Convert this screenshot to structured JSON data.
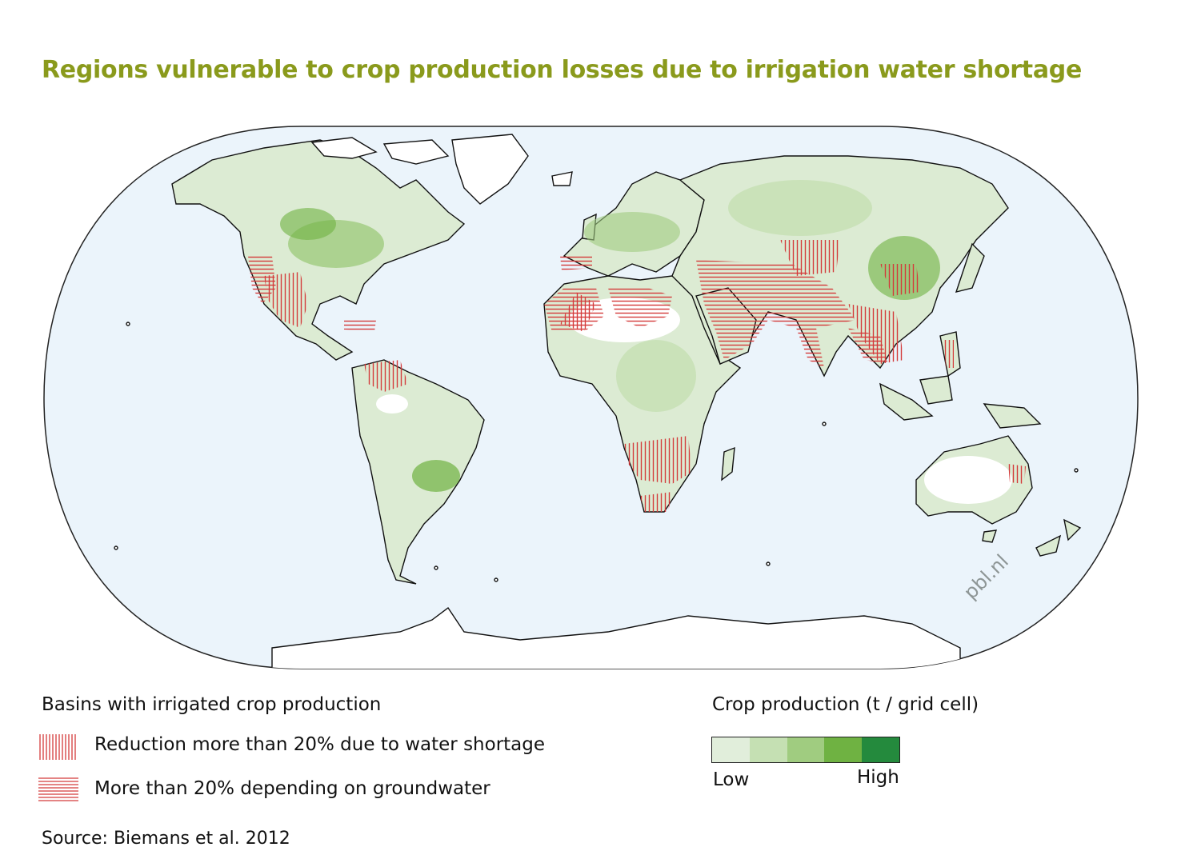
{
  "title": "Regions vulnerable to crop production losses due to irrigation water shortage",
  "watermark": "pbl.nl",
  "legend": {
    "basins_title": "Basins with irrigated crop production",
    "items": [
      {
        "pattern": "vertical-hatch",
        "label": "Reduction more than 20% due to water shortage"
      },
      {
        "pattern": "horizontal-hatch",
        "label": "More than 20% depending on groundwater"
      }
    ],
    "crop_title": "Crop production (t / grid cell)",
    "scale_colors": [
      "#e1eedb",
      "#c5e0b3",
      "#a0cc80",
      "#6fb242",
      "#248a3d"
    ],
    "low_label": "Low",
    "high_label": "High"
  },
  "source": "Source: Biemans et al. 2012",
  "colors": {
    "ocean": "#ebf4fb",
    "land": "#ffffff",
    "hatch": "#d43a3a",
    "title": "#8a9a1c"
  }
}
